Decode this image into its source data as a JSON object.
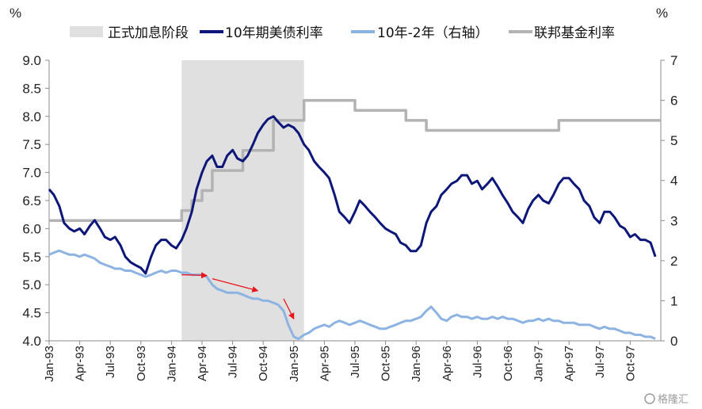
{
  "chart_data": {
    "type": "line",
    "left_unit": "%",
    "right_unit": "%",
    "left_axis": {
      "min": 4.0,
      "max": 9.0,
      "ticks": [
        "4.0",
        "4.5",
        "5.0",
        "5.5",
        "6.0",
        "6.5",
        "7.0",
        "7.5",
        "8.0",
        "8.5",
        "9.0"
      ]
    },
    "right_axis": {
      "min": 0,
      "max": 7,
      "ticks": [
        "0",
        "1",
        "2",
        "3",
        "4",
        "5",
        "6",
        "7"
      ]
    },
    "x_axis": {
      "start": "1993-01",
      "end": "1998-01",
      "tick_labels": [
        "Jan-93",
        "Apr-93",
        "Jul-93",
        "Oct-93",
        "Jan-94",
        "Apr-94",
        "Jul-94",
        "Oct-94",
        "Jan-95",
        "Apr-95",
        "Jul-95",
        "Oct-95",
        "Jan-96",
        "Apr-96",
        "Jul-96",
        "Oct-96",
        "Jan-97",
        "Apr-97",
        "Jul-97",
        "Oct-97"
      ]
    },
    "legend": [
      {
        "name": "正式加息阶段",
        "color": "#e0e0e0",
        "kind": "box"
      },
      {
        "name": "10年期美债利率",
        "color": "#0d1679",
        "kind": "line"
      },
      {
        "name": "10年-2年（右轴）",
        "color": "#8db3e2",
        "kind": "line"
      },
      {
        "name": "联邦基金利率",
        "color": "#b3b3b3",
        "kind": "line"
      }
    ],
    "shaded_period": {
      "label": "正式加息阶段",
      "start": "1994-02",
      "end": "1995-02"
    },
    "series": [
      {
        "name": "10年期美债利率",
        "axis": "left",
        "color": "#0d1679",
        "points": [
          [
            "1993-01",
            6.7
          ],
          [
            "1993-01-15",
            6.6
          ],
          [
            "1993-02",
            6.4
          ],
          [
            "1993-02-15",
            6.1
          ],
          [
            "1993-03",
            6.0
          ],
          [
            "1993-03-15",
            5.95
          ],
          [
            "1993-04",
            6.0
          ],
          [
            "1993-04-15",
            5.9
          ],
          [
            "1993-05",
            6.05
          ],
          [
            "1993-05-15",
            6.15
          ],
          [
            "1993-06",
            6.0
          ],
          [
            "1993-06-15",
            5.85
          ],
          [
            "1993-07",
            5.8
          ],
          [
            "1993-07-15",
            5.85
          ],
          [
            "1993-08",
            5.7
          ],
          [
            "1993-08-15",
            5.5
          ],
          [
            "1993-09",
            5.4
          ],
          [
            "1993-09-15",
            5.35
          ],
          [
            "1993-10",
            5.3
          ],
          [
            "1993-10-15",
            5.2
          ],
          [
            "1993-11",
            5.5
          ],
          [
            "1993-11-15",
            5.7
          ],
          [
            "1993-12",
            5.8
          ],
          [
            "1993-12-15",
            5.8
          ],
          [
            "1994-01",
            5.7
          ],
          [
            "1994-01-15",
            5.65
          ],
          [
            "1994-02",
            5.8
          ],
          [
            "1994-02-15",
            6.0
          ],
          [
            "1994-03",
            6.3
          ],
          [
            "1994-03-15",
            6.7
          ],
          [
            "1994-04",
            7.0
          ],
          [
            "1994-04-15",
            7.2
          ],
          [
            "1994-05",
            7.3
          ],
          [
            "1994-05-15",
            7.1
          ],
          [
            "1994-06",
            7.1
          ],
          [
            "1994-06-15",
            7.3
          ],
          [
            "1994-07",
            7.4
          ],
          [
            "1994-07-15",
            7.25
          ],
          [
            "1994-08",
            7.2
          ],
          [
            "1994-08-15",
            7.3
          ],
          [
            "1994-09",
            7.5
          ],
          [
            "1994-09-15",
            7.7
          ],
          [
            "1994-10",
            7.85
          ],
          [
            "1994-10-15",
            7.95
          ],
          [
            "1994-11",
            8.0
          ],
          [
            "1994-11-15",
            7.9
          ],
          [
            "1994-12",
            7.8
          ],
          [
            "1994-12-15",
            7.85
          ],
          [
            "1995-01",
            7.8
          ],
          [
            "1995-01-15",
            7.7
          ],
          [
            "1995-02",
            7.5
          ],
          [
            "1995-02-15",
            7.4
          ],
          [
            "1995-03",
            7.2
          ],
          [
            "1995-03-15",
            7.1
          ],
          [
            "1995-04",
            7.0
          ],
          [
            "1995-04-15",
            6.9
          ],
          [
            "1995-05",
            6.6
          ],
          [
            "1995-05-15",
            6.3
          ],
          [
            "1995-06",
            6.2
          ],
          [
            "1995-06-15",
            6.1
          ],
          [
            "1995-07",
            6.3
          ],
          [
            "1995-07-15",
            6.5
          ],
          [
            "1995-08",
            6.4
          ],
          [
            "1995-08-15",
            6.3
          ],
          [
            "1995-09",
            6.2
          ],
          [
            "1995-09-15",
            6.1
          ],
          [
            "1995-10",
            6.0
          ],
          [
            "1995-10-15",
            5.95
          ],
          [
            "1995-11",
            5.9
          ],
          [
            "1995-11-15",
            5.75
          ],
          [
            "1995-12",
            5.7
          ],
          [
            "1995-12-15",
            5.6
          ],
          [
            "1996-01",
            5.6
          ],
          [
            "1996-01-15",
            5.7
          ],
          [
            "1996-02",
            6.1
          ],
          [
            "1996-02-15",
            6.3
          ],
          [
            "1996-03",
            6.4
          ],
          [
            "1996-03-15",
            6.6
          ],
          [
            "1996-04",
            6.7
          ],
          [
            "1996-04-15",
            6.8
          ],
          [
            "1996-05",
            6.85
          ],
          [
            "1996-05-15",
            6.95
          ],
          [
            "1996-06",
            6.95
          ],
          [
            "1996-06-15",
            6.8
          ],
          [
            "1996-07",
            6.85
          ],
          [
            "1996-07-15",
            6.7
          ],
          [
            "1996-08",
            6.8
          ],
          [
            "1996-08-15",
            6.9
          ],
          [
            "1996-09",
            6.75
          ],
          [
            "1996-09-15",
            6.6
          ],
          [
            "1996-10",
            6.45
          ],
          [
            "1996-10-15",
            6.3
          ],
          [
            "1996-11",
            6.2
          ],
          [
            "1996-11-15",
            6.1
          ],
          [
            "1996-12",
            6.35
          ],
          [
            "1996-12-15",
            6.5
          ],
          [
            "1997-01",
            6.6
          ],
          [
            "1997-01-15",
            6.5
          ],
          [
            "1997-02",
            6.45
          ],
          [
            "1997-02-15",
            6.6
          ],
          [
            "1997-03",
            6.8
          ],
          [
            "1997-03-15",
            6.9
          ],
          [
            "1997-04",
            6.9
          ],
          [
            "1997-04-15",
            6.8
          ],
          [
            "1997-05",
            6.7
          ],
          [
            "1997-05-15",
            6.5
          ],
          [
            "1997-06",
            6.4
          ],
          [
            "1997-06-15",
            6.2
          ],
          [
            "1997-07",
            6.1
          ],
          [
            "1997-07-15",
            6.3
          ],
          [
            "1997-08",
            6.3
          ],
          [
            "1997-08-15",
            6.2
          ],
          [
            "1997-09",
            6.05
          ],
          [
            "1997-09-15",
            6.0
          ],
          [
            "1997-10",
            5.85
          ],
          [
            "1997-10-15",
            5.9
          ],
          [
            "1997-11",
            5.8
          ],
          [
            "1997-11-15",
            5.8
          ],
          [
            "1997-12",
            5.75
          ],
          [
            "1997-12-15",
            5.5
          ]
        ]
      },
      {
        "name": "10年-2年（右轴）",
        "axis": "right",
        "color": "#8db3e2",
        "points": [
          [
            "1993-01",
            2.15
          ],
          [
            "1993-01-15",
            2.2
          ],
          [
            "1993-02",
            2.25
          ],
          [
            "1993-02-15",
            2.2
          ],
          [
            "1993-03",
            2.15
          ],
          [
            "1993-03-15",
            2.15
          ],
          [
            "1993-04",
            2.1
          ],
          [
            "1993-04-15",
            2.15
          ],
          [
            "1993-05",
            2.1
          ],
          [
            "1993-05-15",
            2.05
          ],
          [
            "1993-06",
            1.95
          ],
          [
            "1993-06-15",
            1.9
          ],
          [
            "1993-07",
            1.85
          ],
          [
            "1993-07-15",
            1.8
          ],
          [
            "1993-08",
            1.8
          ],
          [
            "1993-08-15",
            1.75
          ],
          [
            "1993-09",
            1.75
          ],
          [
            "1993-09-15",
            1.7
          ],
          [
            "1993-10",
            1.65
          ],
          [
            "1993-10-15",
            1.6
          ],
          [
            "1993-11",
            1.65
          ],
          [
            "1993-11-15",
            1.7
          ],
          [
            "1993-12",
            1.75
          ],
          [
            "1993-12-15",
            1.7
          ],
          [
            "1994-01",
            1.75
          ],
          [
            "1994-01-15",
            1.75
          ],
          [
            "1994-02",
            1.7
          ],
          [
            "1994-02-15",
            1.7
          ],
          [
            "1994-03",
            1.65
          ],
          [
            "1994-03-15",
            1.65
          ],
          [
            "1994-04",
            1.65
          ],
          [
            "1994-04-15",
            1.6
          ],
          [
            "1994-05",
            1.4
          ],
          [
            "1994-05-15",
            1.3
          ],
          [
            "1994-06",
            1.25
          ],
          [
            "1994-06-15",
            1.2
          ],
          [
            "1994-07",
            1.2
          ],
          [
            "1994-07-15",
            1.2
          ],
          [
            "1994-08",
            1.15
          ],
          [
            "1994-08-15",
            1.1
          ],
          [
            "1994-09",
            1.05
          ],
          [
            "1994-09-15",
            1.05
          ],
          [
            "1994-10",
            1.0
          ],
          [
            "1994-10-15",
            1.0
          ],
          [
            "1994-11",
            0.95
          ],
          [
            "1994-11-15",
            0.9
          ],
          [
            "1994-12",
            0.75
          ],
          [
            "1994-12-15",
            0.4
          ],
          [
            "1995-01",
            0.1
          ],
          [
            "1995-01-15",
            0.05
          ],
          [
            "1995-02",
            0.15
          ],
          [
            "1995-02-15",
            0.2
          ],
          [
            "1995-03",
            0.3
          ],
          [
            "1995-03-15",
            0.35
          ],
          [
            "1995-04",
            0.4
          ],
          [
            "1995-04-15",
            0.35
          ],
          [
            "1995-05",
            0.45
          ],
          [
            "1995-05-15",
            0.5
          ],
          [
            "1995-06",
            0.45
          ],
          [
            "1995-06-15",
            0.4
          ],
          [
            "1995-07",
            0.45
          ],
          [
            "1995-07-15",
            0.5
          ],
          [
            "1995-08",
            0.45
          ],
          [
            "1995-08-15",
            0.4
          ],
          [
            "1995-09",
            0.35
          ],
          [
            "1995-09-15",
            0.3
          ],
          [
            "1995-10",
            0.3
          ],
          [
            "1995-10-15",
            0.35
          ],
          [
            "1995-11",
            0.4
          ],
          [
            "1995-11-15",
            0.45
          ],
          [
            "1995-12",
            0.5
          ],
          [
            "1995-12-15",
            0.5
          ],
          [
            "1996-01",
            0.55
          ],
          [
            "1996-01-15",
            0.6
          ],
          [
            "1996-02",
            0.75
          ],
          [
            "1996-02-15",
            0.85
          ],
          [
            "1996-03",
            0.7
          ],
          [
            "1996-03-15",
            0.55
          ],
          [
            "1996-04",
            0.5
          ],
          [
            "1996-04-15",
            0.6
          ],
          [
            "1996-05",
            0.65
          ],
          [
            "1996-05-15",
            0.6
          ],
          [
            "1996-06",
            0.6
          ],
          [
            "1996-06-15",
            0.55
          ],
          [
            "1996-07",
            0.6
          ],
          [
            "1996-07-15",
            0.55
          ],
          [
            "1996-08",
            0.55
          ],
          [
            "1996-08-15",
            0.6
          ],
          [
            "1996-09",
            0.55
          ],
          [
            "1996-09-15",
            0.6
          ],
          [
            "1996-10",
            0.55
          ],
          [
            "1996-10-15",
            0.55
          ],
          [
            "1996-11",
            0.5
          ],
          [
            "1996-11-15",
            0.45
          ],
          [
            "1996-12",
            0.5
          ],
          [
            "1996-12-15",
            0.5
          ],
          [
            "1997-01",
            0.55
          ],
          [
            "1997-01-15",
            0.5
          ],
          [
            "1997-02",
            0.55
          ],
          [
            "1997-02-15",
            0.5
          ],
          [
            "1997-03",
            0.5
          ],
          [
            "1997-03-15",
            0.45
          ],
          [
            "1997-04",
            0.45
          ],
          [
            "1997-04-15",
            0.45
          ],
          [
            "1997-05",
            0.4
          ],
          [
            "1997-05-15",
            0.4
          ],
          [
            "1997-06",
            0.4
          ],
          [
            "1997-06-15",
            0.35
          ],
          [
            "1997-07",
            0.3
          ],
          [
            "1997-07-15",
            0.35
          ],
          [
            "1997-08",
            0.3
          ],
          [
            "1997-08-15",
            0.3
          ],
          [
            "1997-09",
            0.25
          ],
          [
            "1997-09-15",
            0.2
          ],
          [
            "1997-10",
            0.2
          ],
          [
            "1997-10-15",
            0.15
          ],
          [
            "1997-11",
            0.15
          ],
          [
            "1997-11-15",
            0.1
          ],
          [
            "1997-12",
            0.1
          ],
          [
            "1997-12-15",
            0.05
          ]
        ]
      },
      {
        "name": "联邦基金利率",
        "axis": "right",
        "color": "#b3b3b3",
        "step": true,
        "points": [
          [
            "1993-01",
            3.0
          ],
          [
            "1994-02",
            3.25
          ],
          [
            "1994-03",
            3.5
          ],
          [
            "1994-04",
            3.75
          ],
          [
            "1994-05",
            4.25
          ],
          [
            "1994-08",
            4.75
          ],
          [
            "1994-11",
            5.5
          ],
          [
            "1995-02",
            6.0
          ],
          [
            "1995-07",
            5.75
          ],
          [
            "1995-12",
            5.5
          ],
          [
            "1996-02",
            5.25
          ],
          [
            "1997-03",
            5.5
          ],
          [
            "1998-01",
            5.5
          ]
        ]
      }
    ],
    "annotations": [
      {
        "kind": "arrow",
        "color": "#e8151b",
        "from": [
          "1994-02",
          1.65
        ],
        "to": [
          "1994-04-15",
          1.63
        ]
      },
      {
        "kind": "arrow",
        "color": "#e8151b",
        "from": [
          "1994-05",
          1.55
        ],
        "to": [
          "1994-09-15",
          1.25
        ]
      },
      {
        "kind": "arrow",
        "color": "#e8151b",
        "from": [
          "1994-12",
          1.05
        ],
        "to": [
          "1995-01",
          0.55
        ]
      }
    ]
  },
  "watermark": "格隆汇"
}
